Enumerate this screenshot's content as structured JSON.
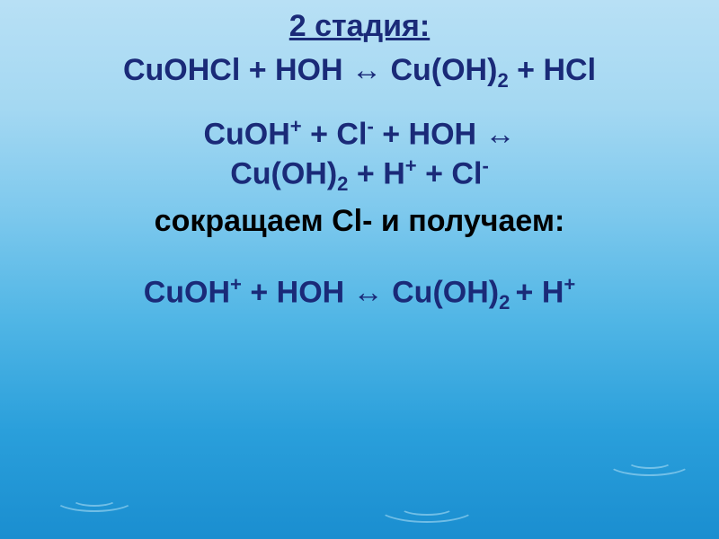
{
  "colors": {
    "blue": "#1a2a78",
    "black": "#000000",
    "bg_top": "#b8e0f5",
    "bg_bottom": "#1a8ed0",
    "ripple": "rgba(180,225,245,0.55)"
  },
  "typography": {
    "font_family": "Arial",
    "title_fontsize_pt": 26,
    "body_fontsize_pt": 26,
    "weight": "bold"
  },
  "title": "2 стадия:",
  "equations": {
    "eq1": {
      "parts": [
        {
          "t": "CuOHCl + HOH ",
          "c": "blue"
        },
        {
          "t": "↔",
          "c": "blue",
          "arrow": true
        },
        {
          "t": " Cu(OH)",
          "c": "blue"
        },
        {
          "t": "2",
          "c": "blue",
          "sub": true
        },
        {
          "t": " + HCl",
          "c": "blue"
        }
      ]
    },
    "eq2": {
      "parts": [
        {
          "t": "CuOH",
          "c": "blue"
        },
        {
          "t": "+",
          "c": "blue",
          "sup": true
        },
        {
          "t": " + Cl",
          "c": "blue"
        },
        {
          "t": "-",
          "c": "blue",
          "sup": true
        },
        {
          "t": " + HOH ",
          "c": "blue"
        },
        {
          "t": "↔",
          "c": "blue",
          "arrow": true
        }
      ]
    },
    "eq3": {
      "parts": [
        {
          "t": "Cu(OH)",
          "c": "blue"
        },
        {
          "t": "2",
          "c": "blue",
          "sub": true
        },
        {
          "t": " + H",
          "c": "blue"
        },
        {
          "t": "+",
          "c": "blue",
          "sup": true
        },
        {
          "t": " + Cl",
          "c": "blue"
        },
        {
          "t": "-",
          "c": "blue",
          "sup": true
        }
      ]
    },
    "note": {
      "parts": [
        {
          "t": "сокращаем Cl- и получаем:",
          "c": "black"
        }
      ]
    },
    "eq4": {
      "parts": [
        {
          "t": "CuOH",
          "c": "blue"
        },
        {
          "t": "+",
          "c": "blue",
          "sup": true
        },
        {
          "t": " + HOH ",
          "c": "blue"
        },
        {
          "t": "↔",
          "c": "blue",
          "arrow": true
        },
        {
          "t": " Cu(OH)",
          "c": "blue"
        },
        {
          "t": "2 ",
          "c": "blue",
          "sub": true
        },
        {
          "t": " + H",
          "c": "blue"
        },
        {
          "t": "+",
          "c": "blue",
          "sup": true
        }
      ]
    }
  }
}
